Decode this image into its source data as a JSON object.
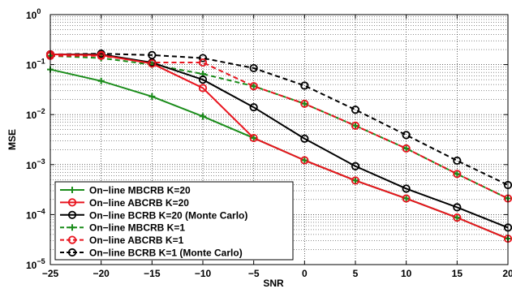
{
  "chart_data": {
    "type": "line",
    "xlabel": "SNR",
    "ylabel": "MSE",
    "xlim": [
      -25,
      20
    ],
    "ylim_log10": [
      -5,
      0
    ],
    "yscale": "log",
    "grid": true,
    "legend_position": "bottom-left",
    "x_ticks": [
      "−25",
      "−20",
      "−15",
      "−10",
      "−5",
      "0",
      "5",
      "10",
      "15",
      "20"
    ],
    "x_tick_values": [
      -25,
      -20,
      -15,
      -10,
      -5,
      0,
      5,
      10,
      15,
      20
    ],
    "y_tick_values_log10": [
      -5,
      -4,
      -3,
      -2,
      -1,
      0
    ],
    "y_tick_base": "10",
    "y_tick_exponents": [
      "−5",
      "−4",
      "−3",
      "−2",
      "−1",
      "0"
    ],
    "series": [
      {
        "name": "On−line MBCRB K=20",
        "color": "#1a8c1a",
        "dash": "solid",
        "marker": "plus",
        "x": [
          -25,
          -20,
          -15,
          -10,
          -5,
          0,
          5,
          10,
          15,
          20
        ],
        "y": [
          0.08,
          0.047,
          0.023,
          0.0092,
          0.0034,
          0.00122,
          0.00048,
          0.00021,
          8.7e-05,
          3.3e-05
        ]
      },
      {
        "name": "On−line ABCRB K=20",
        "color": "#e8141e",
        "dash": "solid",
        "marker": "circle",
        "x": [
          -25,
          -20,
          -15,
          -10,
          -5,
          0,
          5,
          10,
          15,
          20
        ],
        "y": [
          0.16,
          0.155,
          0.105,
          0.034,
          0.0034,
          0.00122,
          0.00048,
          0.00021,
          8.7e-05,
          3.3e-05
        ]
      },
      {
        "name": "On−line BCRB K=20 (Monte Carlo)",
        "color": "#000000",
        "dash": "solid",
        "marker": "circle",
        "x": [
          -25,
          -20,
          -15,
          -10,
          -5,
          0,
          5,
          10,
          15,
          20
        ],
        "y": [
          0.16,
          0.16,
          0.11,
          0.05,
          0.014,
          0.0033,
          0.00093,
          0.00033,
          0.00014,
          5.5e-05
        ]
      },
      {
        "name": "On−line MBCRB K=1",
        "color": "#1a8c1a",
        "dash": "dashed",
        "marker": "plus",
        "x": [
          -25,
          -20,
          -15,
          -10,
          -5,
          0,
          5,
          10,
          15,
          20
        ],
        "y": [
          0.15,
          0.135,
          0.1,
          0.065,
          0.037,
          0.0165,
          0.006,
          0.0021,
          0.00065,
          0.00021
        ]
      },
      {
        "name": "On−line ABCRB K=1",
        "color": "#e8141e",
        "dash": "dashed",
        "marker": "circle",
        "x": [
          -25,
          -20,
          -15,
          -10,
          -5,
          0,
          5,
          10,
          15,
          20
        ],
        "y": [
          0.15,
          0.15,
          0.11,
          0.11,
          0.037,
          0.0165,
          0.006,
          0.0021,
          0.00065,
          0.00021
        ]
      },
      {
        "name": "On−line BCRB K=1 (Monte Carlo)",
        "color": "#000000",
        "dash": "dashed",
        "marker": "circle",
        "x": [
          -25,
          -20,
          -15,
          -10,
          -5,
          0,
          5,
          10,
          15,
          20
        ],
        "y": [
          0.16,
          0.165,
          0.155,
          0.135,
          0.085,
          0.038,
          0.0125,
          0.0039,
          0.0012,
          0.00039
        ]
      }
    ]
  }
}
